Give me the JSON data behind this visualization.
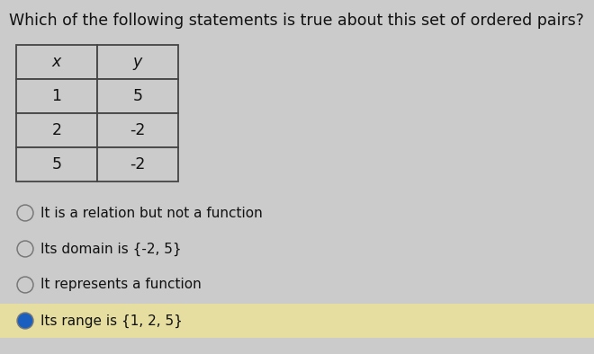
{
  "title": "Which of the following statements is true about this set of ordered pairs?",
  "title_fontsize": 12.5,
  "table_headers": [
    "x",
    "y"
  ],
  "table_data": [
    [
      "1",
      "5"
    ],
    [
      "2",
      "-2"
    ],
    [
      "5",
      "-2"
    ]
  ],
  "options": [
    "It is a relation but not a function",
    "Its domain is {-2, 5}",
    "It represents a function",
    "Its range is {1, 2, 5}"
  ],
  "selected_option": 3,
  "background_color": "#cbcbcb",
  "selected_highlight_color": "#e6dea0",
  "selected_dot_fill": "#1a5fbf",
  "unselected_dot_fill": "#cbcbcb",
  "dot_edge_color": "#777777",
  "table_bg": "#cbcbcb",
  "table_border_color": "#444444",
  "text_color": "#111111",
  "option_fontsize": 11.0,
  "table_fontsize": 12.5,
  "fig_width": 6.6,
  "fig_height": 3.94,
  "dpi": 100
}
